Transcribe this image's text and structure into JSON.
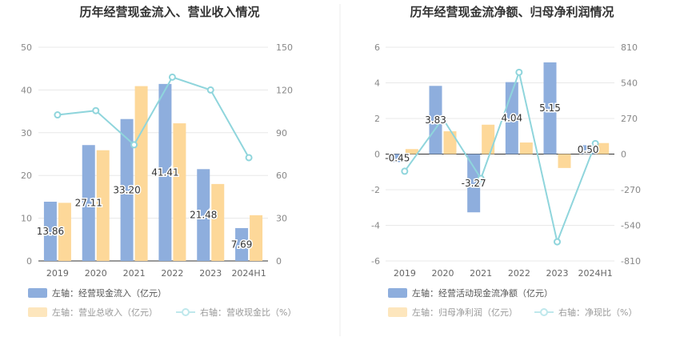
{
  "chart_data": [
    {
      "type": "bar",
      "title": "历年经营现金流入、营业收入情况",
      "categories": [
        "2019",
        "2020",
        "2021",
        "2022",
        "2023",
        "2024H1"
      ],
      "left_axis": {
        "min": 0,
        "max": 50,
        "ticks": [
          "0",
          "10",
          "20",
          "30",
          "40",
          "50"
        ]
      },
      "right_axis": {
        "min": 0,
        "max": 150,
        "ticks": [
          "0",
          "30",
          "60",
          "90",
          "120",
          "150"
        ]
      },
      "series": [
        {
          "name": "左轴：经营现金流入（亿元）",
          "axis": "left",
          "kind": "bar",
          "color": "#8eaedd",
          "values": [
            13.86,
            27.11,
            33.2,
            41.41,
            21.48,
            7.69
          ],
          "labels": [
            "13.86",
            "27.11",
            "33.20",
            "41.41",
            "21.48",
            "7.69"
          ]
        },
        {
          "name": "左轴：营业总收入（亿元）",
          "axis": "left",
          "kind": "bar",
          "color": "#fdd899",
          "values": [
            13.6,
            25.9,
            40.9,
            32.2,
            18.0,
            10.7
          ]
        },
        {
          "name": "右轴：营收现金比（%）",
          "axis": "right",
          "kind": "line",
          "color": "#8fd5dc",
          "values": [
            102.5,
            105.5,
            81.5,
            129,
            120,
            72.5
          ]
        }
      ]
    },
    {
      "type": "bar",
      "title": "历年经营现金流净额、归母净利润情况",
      "categories": [
        "2019",
        "2020",
        "2021",
        "2022",
        "2023",
        "2024H1"
      ],
      "left_axis": {
        "min": -6,
        "max": 6,
        "ticks": [
          "-6",
          "-4",
          "-2",
          "0",
          "2",
          "4",
          "6"
        ]
      },
      "right_axis": {
        "min": -810,
        "max": 810,
        "ticks": [
          "-810",
          "-540",
          "-270",
          "0",
          "270",
          "540",
          "810"
        ]
      },
      "series": [
        {
          "name": "左轴：经营活动现金流净额（亿元）",
          "axis": "left",
          "kind": "bar",
          "color": "#8eaedd",
          "values": [
            -0.45,
            3.83,
            -3.27,
            4.04,
            5.15,
            0.5
          ],
          "labels": [
            "-0.45",
            "3.83",
            "-3.27",
            "4.04",
            "5.15",
            "0.50"
          ]
        },
        {
          "name": "左轴：归母净利润（亿元）",
          "axis": "left",
          "kind": "bar",
          "color": "#fdd899",
          "values": [
            0.28,
            1.28,
            1.65,
            0.65,
            -0.78,
            0.62
          ]
        },
        {
          "name": "右轴：净现比（%）",
          "axis": "right",
          "kind": "line",
          "color": "#8fd5dc",
          "values": [
            -130,
            270,
            -185,
            620,
            -665,
            80
          ]
        }
      ]
    }
  ]
}
